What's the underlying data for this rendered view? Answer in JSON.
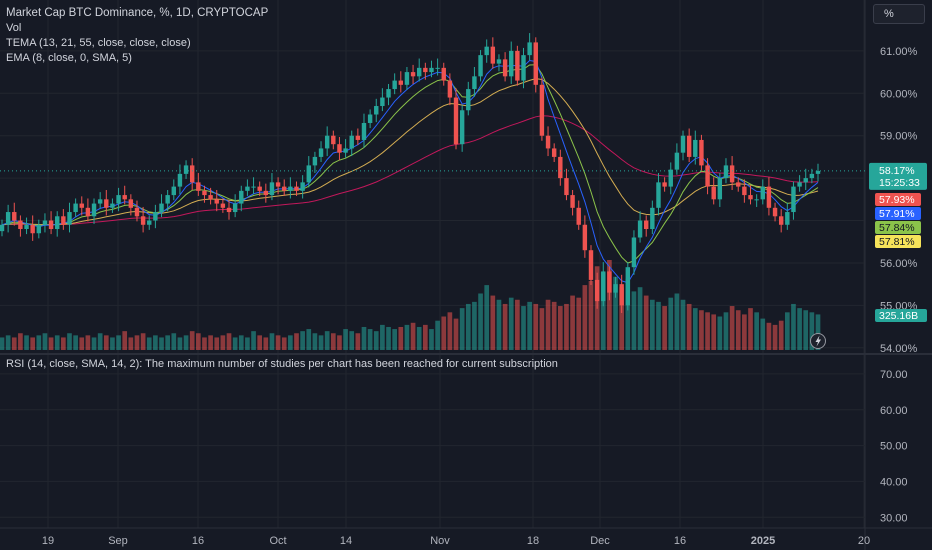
{
  "legend": {
    "title": "Market Cap BTC Dominance, %, 1D, CRYPTOCAP",
    "vol": "Vol",
    "tema": "TEMA (13, 21, 55, close, close, close)",
    "ema": "EMA (8, close, 0, SMA, 5)"
  },
  "scale_button": "%",
  "rsi_message": "RSI (14, close, SMA, 14, 2): The maximum number of studies per chart has been reached for current subscription",
  "colors": {
    "up": "#26a69a",
    "down": "#ef5350",
    "tema1": "#2962ff",
    "tema2": "#8bc34a",
    "tema3": "#d4ad52",
    "ema": "#c2185b",
    "bg": "#161a25",
    "grid": "#22262f"
  },
  "chart_data": [
    {
      "type": "candlestick",
      "title": "Market Cap BTC Dominance, %, 1D, CRYPTOCAP",
      "x_ticks": [
        "19",
        "Sep",
        "16",
        "Oct",
        "14",
        "Nov",
        "18",
        "Dec",
        "16",
        "2025",
        "20"
      ],
      "y_ticks": [
        "61.00%",
        "60.00%",
        "59.00%",
        "56.00%",
        "55.00%",
        "54.00%"
      ],
      "ylim": [
        53.9,
        62.2
      ],
      "current_price": "58.17%",
      "countdown": "15:25:33",
      "indicator_tags": [
        {
          "label": "57.93%",
          "color": "#ef5350"
        },
        {
          "label": "57.91%",
          "color": "#2962ff"
        },
        {
          "label": "57.84%",
          "color": "#8bc34a"
        },
        {
          "label": "57.81%",
          "color": "#f6e35a"
        }
      ],
      "volume_tag": "325.16B",
      "close": [
        56.9,
        57.2,
        57.0,
        56.8,
        56.9,
        56.7,
        56.9,
        57.0,
        56.8,
        57.1,
        56.9,
        57.2,
        57.4,
        57.3,
        57.1,
        57.4,
        57.5,
        57.3,
        57.4,
        57.6,
        57.5,
        57.3,
        57.1,
        56.9,
        57.0,
        57.2,
        57.4,
        57.6,
        57.8,
        58.1,
        58.3,
        57.9,
        57.7,
        57.6,
        57.5,
        57.4,
        57.3,
        57.2,
        57.4,
        57.7,
        57.8,
        57.8,
        57.7,
        57.6,
        57.9,
        57.8,
        57.7,
        57.8,
        57.7,
        57.9,
        58.3,
        58.5,
        58.7,
        59.0,
        58.8,
        58.6,
        58.7,
        59.0,
        58.9,
        59.3,
        59.5,
        59.7,
        59.9,
        60.1,
        60.3,
        60.2,
        60.5,
        60.4,
        60.6,
        60.5,
        60.6,
        60.6,
        60.3,
        59.9,
        58.8,
        59.6,
        60.1,
        60.4,
        60.9,
        61.1,
        60.7,
        60.8,
        60.4,
        61.0,
        60.3,
        60.9,
        61.2,
        60.2,
        59.0,
        58.7,
        58.5,
        58.0,
        57.6,
        57.3,
        56.9,
        56.3,
        55.6,
        55.1,
        55.8,
        55.3,
        55.5,
        55.0,
        55.9,
        56.6,
        57.0,
        56.8,
        57.3,
        57.9,
        57.8,
        58.2,
        58.6,
        59.0,
        58.5,
        58.9,
        58.3,
        57.8,
        57.5,
        58.0,
        58.3,
        57.9,
        57.8,
        57.6,
        57.5,
        57.5,
        57.8,
        57.3,
        57.1,
        56.9,
        57.2,
        57.8,
        57.9,
        58.0,
        58.1,
        58.17
      ],
      "volume": [
        6,
        7,
        6,
        8,
        7,
        6,
        7,
        8,
        6,
        7,
        6,
        8,
        7,
        6,
        7,
        6,
        8,
        7,
        6,
        7,
        9,
        6,
        7,
        8,
        6,
        7,
        6,
        7,
        8,
        6,
        7,
        9,
        8,
        6,
        7,
        6,
        7,
        8,
        6,
        7,
        6,
        9,
        7,
        6,
        8,
        7,
        6,
        7,
        8,
        9,
        10,
        8,
        7,
        9,
        8,
        7,
        10,
        9,
        8,
        11,
        10,
        9,
        12,
        11,
        10,
        11,
        12,
        13,
        11,
        12,
        10,
        14,
        16,
        18,
        15,
        20,
        22,
        23,
        27,
        31,
        26,
        24,
        22,
        25,
        24,
        21,
        23,
        22,
        20,
        24,
        23,
        21,
        22,
        26,
        25,
        31,
        33,
        40,
        37,
        43,
        35,
        30,
        34,
        28,
        30,
        26,
        24,
        23,
        21,
        25,
        27,
        24,
        22,
        20,
        19,
        18,
        17,
        16,
        18,
        21,
        19,
        17,
        20,
        18,
        15,
        13,
        12,
        14,
        18,
        22,
        20,
        19,
        18,
        17
      ]
    }
  ]
}
